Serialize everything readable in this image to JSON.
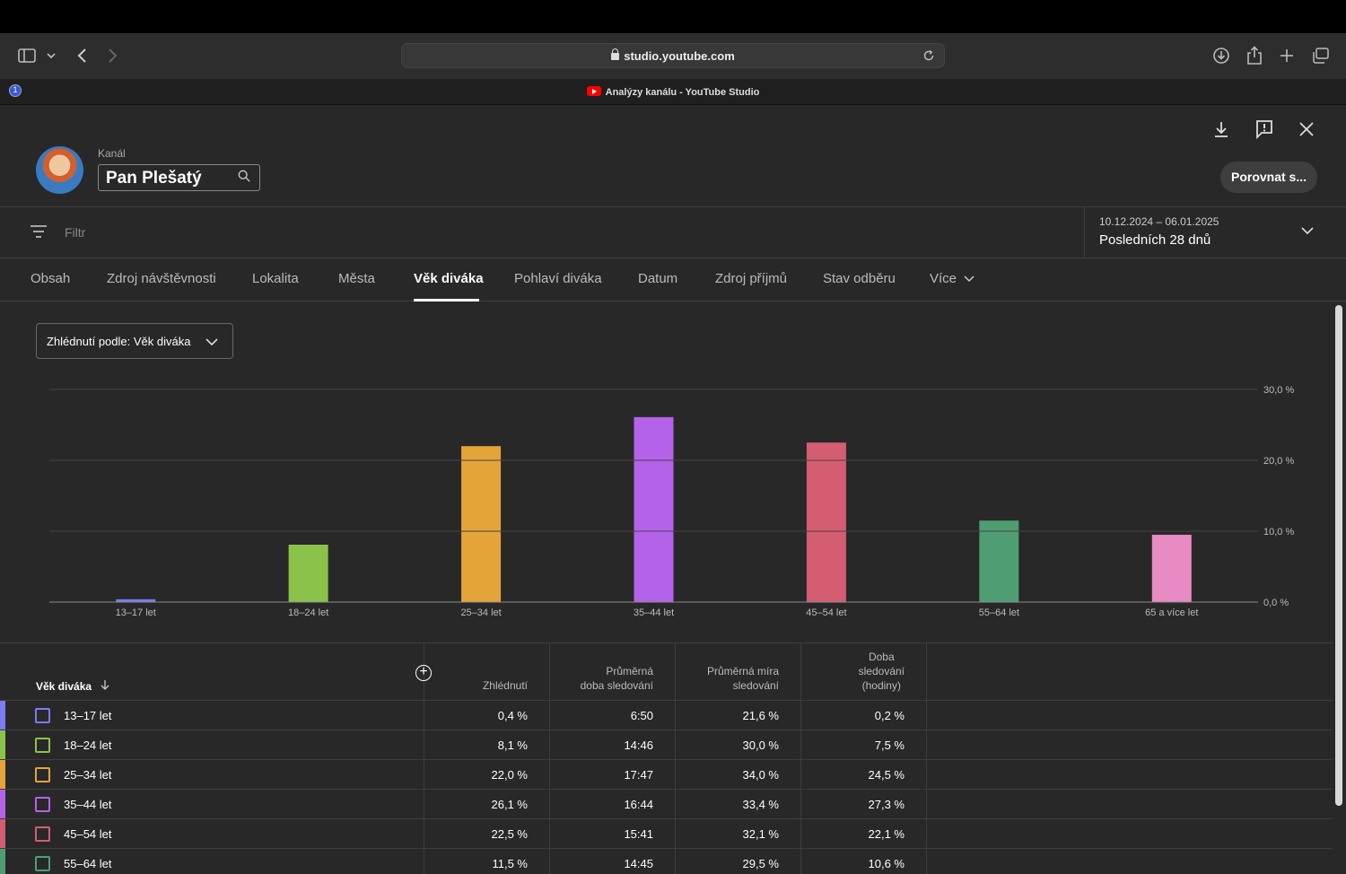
{
  "browser": {
    "url": "studio.youtube.com",
    "tab_title": "Analýzy kanálu - YouTube Studio",
    "password_manager_badge": "1"
  },
  "header": {
    "channel_label": "Kanál",
    "channel_name": "Pan Plešatý",
    "compare_button": "Porovnat s..."
  },
  "filter": {
    "placeholder": "Filtr",
    "date_range": "10.12.2024 – 06.01.2025",
    "period_label": "Posledních 28 dnů"
  },
  "tabs": [
    {
      "label": "Obsah"
    },
    {
      "label": "Zdroj návštěvnosti"
    },
    {
      "label": "Lokalita"
    },
    {
      "label": "Města"
    },
    {
      "label": "Věk diváka"
    },
    {
      "label": "Pohlaví diváka"
    },
    {
      "label": "Datum"
    },
    {
      "label": "Zdroj příjmů"
    },
    {
      "label": "Stav odběru"
    },
    {
      "label": "Více"
    }
  ],
  "metric_select": "Zhlédnutí podle: Věk diváka",
  "chart_data": {
    "type": "bar",
    "categories": [
      "13–17 let",
      "18–24 let",
      "25–34 let",
      "35–44 let",
      "45–54 let",
      "55–64 let",
      "65 a více let"
    ],
    "values": [
      0.4,
      8.1,
      22.0,
      26.1,
      22.5,
      11.5,
      9.5
    ],
    "colors": [
      "#7b7cf4",
      "#8bc34a",
      "#e5a43a",
      "#b362e9",
      "#d45d72",
      "#4f9e73",
      "#e88bc4"
    ],
    "ylim": [
      0,
      30
    ],
    "yticks": [
      "0,0 %",
      "10,0 %",
      "20,0 %",
      "30,0 %"
    ],
    "grid": true,
    "axis_side": "right"
  },
  "table": {
    "headers": {
      "dimension": "Věk diváka",
      "views": "Zhlédnutí",
      "avg_duration": [
        "Průměrná",
        "doba sledování"
      ],
      "avg_percent": [
        "Průměrná míra",
        "sledování"
      ],
      "watch_time": [
        "Doba",
        "sledování",
        "(hodiny)"
      ]
    },
    "rows": [
      {
        "label": "13–17 let",
        "views": "0,4 %",
        "duration": "6:50",
        "percent": "21,6 %",
        "hours": "0,2 %",
        "color": "#7b7cf4"
      },
      {
        "label": "18–24 let",
        "views": "8,1 %",
        "duration": "14:46",
        "percent": "30,0 %",
        "hours": "7,5 %",
        "color": "#8bc34a"
      },
      {
        "label": "25–34 let",
        "views": "22,0 %",
        "duration": "17:47",
        "percent": "34,0 %",
        "hours": "24,5 %",
        "color": "#e5a43a"
      },
      {
        "label": "35–44 let",
        "views": "26,1 %",
        "duration": "16:44",
        "percent": "33,4 %",
        "hours": "27,3 %",
        "color": "#b362e9"
      },
      {
        "label": "45–54 let",
        "views": "22,5 %",
        "duration": "15:41",
        "percent": "32,1 %",
        "hours": "22,1 %",
        "color": "#d45d72"
      },
      {
        "label": "55–64 let",
        "views": "11,5 %",
        "duration": "14:45",
        "percent": "29,5 %",
        "hours": "10,6 %",
        "color": "#4f9e73"
      }
    ]
  }
}
